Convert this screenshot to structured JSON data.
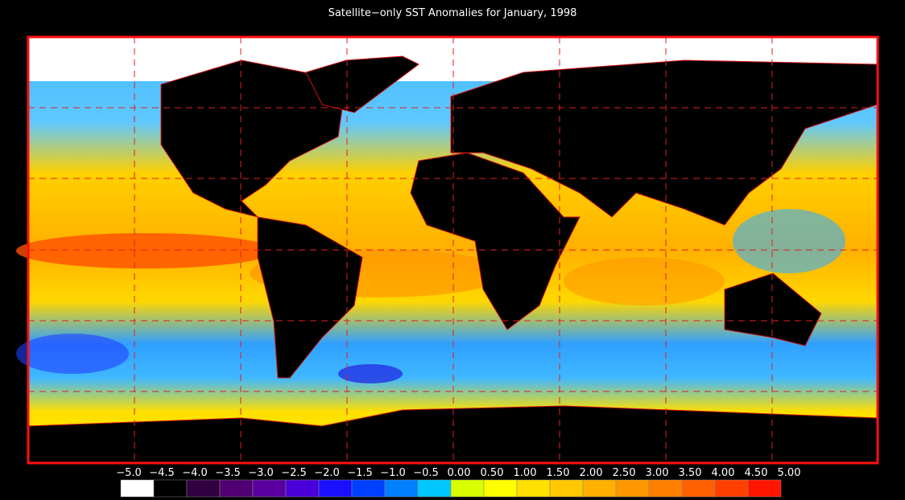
{
  "title": "Satellite−only SST Anomalies for January, 1998",
  "colorbar": {
    "ticks": [
      {
        "value": -5,
        "label": "−5.0"
      },
      {
        "value": -4.5,
        "label": "−4.5"
      },
      {
        "value": -4,
        "label": "−4.0"
      },
      {
        "value": -3.5,
        "label": "−3.5"
      },
      {
        "value": -3,
        "label": "−3.0"
      },
      {
        "value": -2.5,
        "label": "−2.5"
      },
      {
        "value": -2,
        "label": "−2.0"
      },
      {
        "value": -1.5,
        "label": "−1.5"
      },
      {
        "value": -1,
        "label": "−1.0"
      },
      {
        "value": -0.5,
        "label": "−0.5"
      },
      {
        "value": 0,
        "label": "0.00"
      },
      {
        "value": 0.5,
        "label": "0.50"
      },
      {
        "value": 1,
        "label": "1.00"
      },
      {
        "value": 1.5,
        "label": "1.50"
      },
      {
        "value": 2,
        "label": "2.00"
      },
      {
        "value": 2.5,
        "label": "2.50"
      },
      {
        "value": 3,
        "label": "3.00"
      },
      {
        "value": 3.5,
        "label": "3.50"
      },
      {
        "value": 4,
        "label": "4.00"
      },
      {
        "value": 4.5,
        "label": "4.50"
      },
      {
        "value": 5,
        "label": "5.00"
      }
    ],
    "colors": [
      "#ffffff",
      "#000000",
      "#300040",
      "#500070",
      "#5a00a0",
      "#4a00d8",
      "#1a10ff",
      "#0040ff",
      "#0080ff",
      "#00c8ff",
      "#d8ff00",
      "#ffff00",
      "#ffe000",
      "#ffc800",
      "#ffb000",
      "#ff9800",
      "#ff8000",
      "#ff6000",
      "#ff4000",
      "#ff1500"
    ]
  }
}
